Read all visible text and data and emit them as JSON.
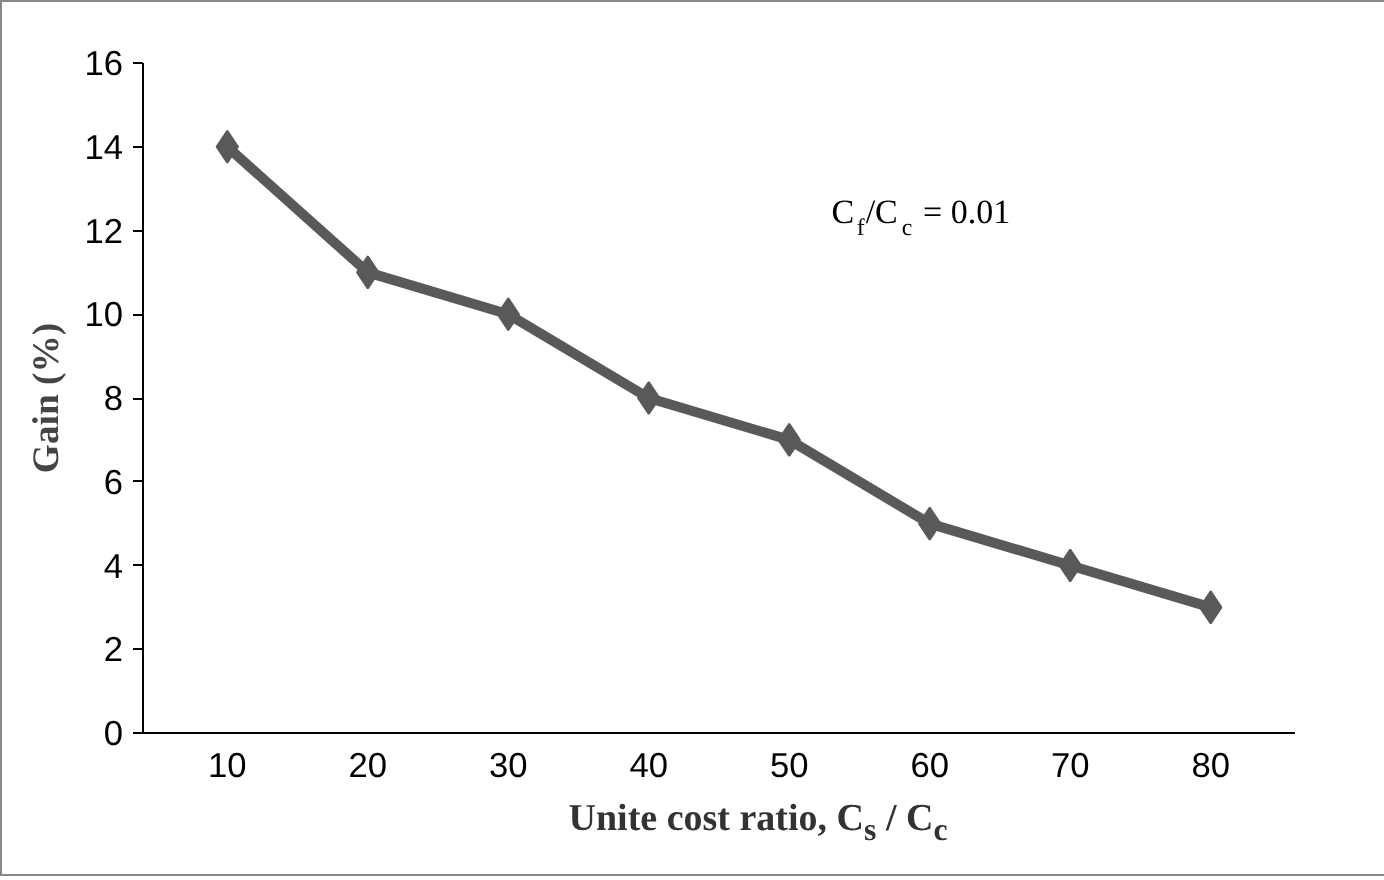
{
  "chart_data": {
    "type": "line",
    "categories": [
      "10",
      "20",
      "30",
      "40",
      "50",
      "60",
      "70",
      "80"
    ],
    "values": [
      14,
      11,
      10,
      8,
      7,
      5,
      4,
      3
    ],
    "color": "#595959",
    "marker": "diamond",
    "line_style": "solid",
    "xlabel": "Unite cost ratio, C$_{s}$ / C$_{c}$",
    "ylabel": "Gain (%)",
    "annotations": [
      "C$_{f}$/C$_{c}$ = 0.01"
    ],
    "ylim": [
      0,
      16
    ],
    "yticks": [
      0,
      2,
      4,
      6,
      8,
      10,
      12,
      14,
      16
    ],
    "grid": false
  }
}
